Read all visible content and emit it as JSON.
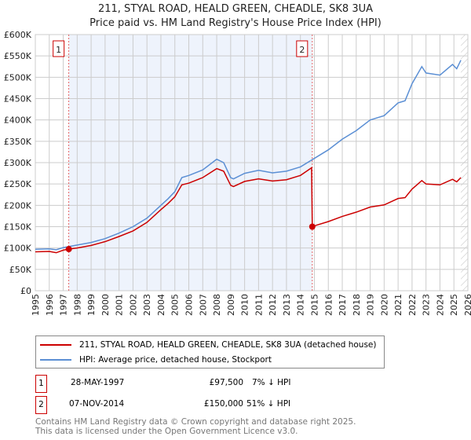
{
  "chart_data": {
    "type": "line",
    "title": "211, STYAL ROAD, HEALD GREEN, CHEADLE, SK8 3UA",
    "subtitle": "Price paid vs. HM Land Registry's House Price Index (HPI)",
    "xlim": [
      1995,
      2026
    ],
    "ylim": [
      0,
      600000
    ],
    "x_ticks": [
      "1995",
      "1996",
      "1997",
      "1998",
      "1999",
      "2000",
      "2001",
      "2002",
      "2003",
      "2004",
      "2005",
      "2006",
      "2007",
      "2008",
      "2009",
      "2010",
      "2011",
      "2012",
      "2013",
      "2014",
      "2015",
      "2016",
      "2017",
      "2018",
      "2019",
      "2020",
      "2021",
      "2022",
      "2023",
      "2024",
      "2025",
      "2026"
    ],
    "y_ticks": [
      {
        "v": 0,
        "label": "£0"
      },
      {
        "v": 50000,
        "label": "£50K"
      },
      {
        "v": 100000,
        "label": "£100K"
      },
      {
        "v": 150000,
        "label": "£150K"
      },
      {
        "v": 200000,
        "label": "£200K"
      },
      {
        "v": 250000,
        "label": "£250K"
      },
      {
        "v": 300000,
        "label": "£300K"
      },
      {
        "v": 350000,
        "label": "£350K"
      },
      {
        "v": 400000,
        "label": "£400K"
      },
      {
        "v": 450000,
        "label": "£450K"
      },
      {
        "v": 500000,
        "label": "£500K"
      },
      {
        "v": 550000,
        "label": "£550K"
      },
      {
        "v": 600000,
        "label": "£600K"
      }
    ],
    "grid": true,
    "series": [
      {
        "name": "HPI: Average price, detached house, Stockport",
        "color": "#5b8fd4",
        "x": [
          1995,
          1996,
          1996.5,
          1997,
          1998,
          1999,
          2000,
          2001,
          2002,
          2003,
          2004,
          2004.5,
          2005,
          2005.5,
          2006,
          2007,
          2008,
          2008.5,
          2009,
          2009.2,
          2010,
          2011,
          2012,
          2013,
          2014,
          2014.85,
          2015,
          2016,
          2017,
          2018,
          2019,
          2020,
          2021,
          2021.5,
          2022,
          2022.7,
          2023,
          2024,
          2024.9,
          2025.2,
          2025.5
        ],
        "y": [
          97000,
          98000,
          96000,
          101000,
          107000,
          113000,
          122000,
          135000,
          150000,
          170000,
          200000,
          215000,
          232000,
          265000,
          270000,
          283000,
          308000,
          300000,
          265000,
          262000,
          275000,
          282000,
          276000,
          280000,
          290000,
          307000,
          310000,
          330000,
          355000,
          375000,
          400000,
          410000,
          440000,
          445000,
          485000,
          525000,
          510000,
          505000,
          530000,
          520000,
          540000
        ]
      },
      {
        "name": "211, STYAL ROAD, HEALD GREEN, CHEADLE, SK8 3UA (detached house)",
        "color": "#cc0000",
        "x": [
          1995,
          1996,
          1996.5,
          1997,
          1997.4,
          1998,
          1999,
          2000,
          2001,
          2002,
          2003,
          2004,
          2004.5,
          2005,
          2005.5,
          2006,
          2007,
          2008,
          2008.5,
          2009,
          2009.2,
          2010,
          2011,
          2012,
          2013,
          2014,
          2014.8,
          2014.85,
          2015,
          2016,
          2017,
          2018,
          2019,
          2020,
          2021,
          2021.5,
          2022,
          2022.7,
          2023,
          2024,
          2024.9,
          2025.2,
          2025.5
        ],
        "y": [
          91000,
          92000,
          89000,
          95000,
          97500,
          100000,
          106000,
          115000,
          127000,
          140000,
          160000,
          190000,
          204000,
          220000,
          248000,
          252000,
          265000,
          286000,
          280000,
          247000,
          244000,
          256000,
          262000,
          257000,
          260000,
          270000,
          288000,
          150000,
          152000,
          162000,
          174000,
          184000,
          196000,
          201000,
          216000,
          218000,
          238000,
          258000,
          250000,
          248000,
          261000,
          255000,
          265000
        ]
      }
    ],
    "sales": [
      {
        "n": "1",
        "x": 1997.4,
        "price": 97500,
        "date": "28-MAY-1997",
        "price_label": "£97,500",
        "hpi": "7% ↓ HPI"
      },
      {
        "n": "2",
        "x": 2014.85,
        "price": 150000,
        "date": "07-NOV-2014",
        "price_label": "£150,000",
        "hpi": "51% ↓ HPI"
      }
    ],
    "hatch_from": 2025.5,
    "legend_placement": "below"
  },
  "footer": {
    "line1": "Contains HM Land Registry data © Crown copyright and database right 2025.",
    "line2": "This data is licensed under the Open Government Licence v3.0."
  }
}
